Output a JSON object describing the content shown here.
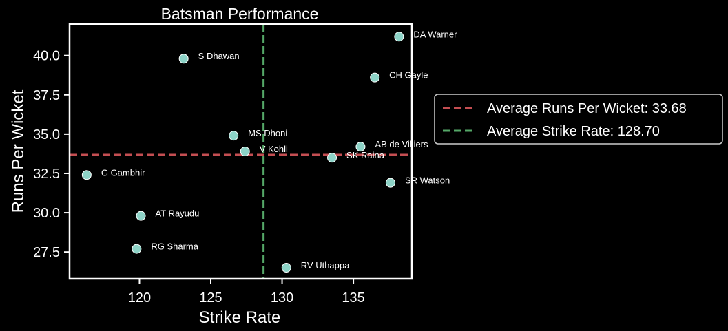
{
  "chart_data": {
    "type": "scatter",
    "title": "Batsman Performance",
    "xlabel": "Strike Rate",
    "ylabel": "Runs Per Wicket",
    "xlim": [
      115.1,
      139.1
    ],
    "ylim": [
      25.8,
      42.0
    ],
    "x_ticks": [
      120,
      125,
      130,
      135
    ],
    "y_ticks": [
      27.5,
      30.0,
      32.5,
      35.0,
      37.5,
      40.0
    ],
    "points": [
      {
        "label": "DA Warner",
        "x": 138.2,
        "y": 41.2
      },
      {
        "label": "S Dhawan",
        "x": 123.1,
        "y": 39.8
      },
      {
        "label": "CH Gayle",
        "x": 136.5,
        "y": 38.6
      },
      {
        "label": "MS Dhoni",
        "x": 126.6,
        "y": 34.9
      },
      {
        "label": "V Kohli",
        "x": 127.4,
        "y": 33.9
      },
      {
        "label": "AB de Villiers",
        "x": 135.5,
        "y": 34.2
      },
      {
        "label": "SK Raina",
        "x": 133.5,
        "y": 33.5
      },
      {
        "label": "G Gambhir",
        "x": 116.3,
        "y": 32.4
      },
      {
        "label": "SR Watson",
        "x": 137.6,
        "y": 31.9
      },
      {
        "label": "AT Rayudu",
        "x": 120.1,
        "y": 29.8
      },
      {
        "label": "RG Sharma",
        "x": 119.8,
        "y": 27.7
      },
      {
        "label": "RV Uthappa",
        "x": 130.3,
        "y": 26.5
      }
    ],
    "reference_lines": [
      {
        "orientation": "horizontal",
        "value": 33.68,
        "label": "Average Runs Per Wicket: 33.68",
        "color": "#c44e52"
      },
      {
        "orientation": "vertical",
        "value": 128.7,
        "label": "Average Strike Rate: 128.70",
        "color": "#55a868"
      }
    ],
    "marker_color": "#8dd3c7",
    "grid": false,
    "legend_position": "right-outside"
  }
}
